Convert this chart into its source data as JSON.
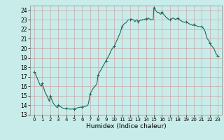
{
  "xlabel": "Humidex (Indice chaleur)",
  "background_color": "#c8ece9",
  "grid_color_major": "#c8a8a8",
  "grid_color_minor": "#ddbfbf",
  "line_color": "#1a6b5a",
  "marker_color": "#1a6b5a",
  "xlim": [
    -0.5,
    23.5
  ],
  "ylim": [
    13,
    24.5
  ],
  "yticks": [
    13,
    14,
    15,
    16,
    17,
    18,
    19,
    20,
    21,
    22,
    23,
    24
  ],
  "xticks": [
    0,
    1,
    2,
    3,
    4,
    5,
    6,
    7,
    8,
    9,
    10,
    11,
    12,
    13,
    14,
    15,
    16,
    17,
    18,
    19,
    20,
    21,
    22,
    23
  ],
  "x": [
    0,
    1,
    2,
    3,
    4,
    5,
    6,
    7,
    8,
    9,
    10,
    11,
    12,
    13,
    14,
    15,
    16,
    17,
    18,
    19,
    20,
    21,
    22,
    23
  ],
  "y": [
    17.5,
    16.3,
    15.0,
    14.0,
    13.7,
    13.6,
    13.8,
    15.2,
    17.2,
    18.7,
    20.2,
    22.3,
    23.0,
    22.8,
    23.1,
    24.3,
    23.8,
    23.0,
    23.2,
    22.8,
    22.5,
    22.3,
    20.5,
    19.2
  ],
  "dense_x": [
    0.0,
    0.1,
    0.2,
    0.3,
    0.4,
    0.5,
    0.6,
    0.7,
    0.8,
    0.9,
    1.0,
    1.1,
    1.2,
    1.3,
    1.4,
    1.5,
    1.6,
    1.7,
    1.8,
    1.9,
    2.0,
    2.1,
    2.2,
    2.3,
    2.4,
    2.5,
    2.6,
    2.7,
    2.8,
    2.9,
    3.0,
    3.1,
    3.2,
    3.3,
    3.4,
    3.5,
    3.6,
    3.7,
    3.8,
    3.9,
    4.0,
    4.1,
    4.2,
    4.3,
    4.4,
    4.5,
    4.6,
    4.7,
    4.8,
    4.9,
    5.0,
    5.1,
    5.2,
    5.3,
    5.4,
    5.5,
    5.6,
    5.7,
    5.8,
    5.9,
    6.0,
    6.1,
    6.2,
    6.3,
    6.4,
    6.5,
    6.6,
    6.7,
    6.8,
    6.9,
    7.0,
    7.1,
    7.2,
    7.3,
    7.4,
    7.5,
    7.6,
    7.7,
    7.8,
    7.9,
    8.0,
    8.1,
    8.2,
    8.3,
    8.4,
    8.5,
    8.6,
    8.7,
    8.8,
    8.9,
    9.0,
    9.1,
    9.2,
    9.3,
    9.4,
    9.5,
    9.6,
    9.7,
    9.8,
    9.9,
    10.0,
    10.1,
    10.2,
    10.3,
    10.4,
    10.5,
    10.6,
    10.7,
    10.8,
    10.9,
    11.0,
    11.1,
    11.2,
    11.3,
    11.4,
    11.5,
    11.6,
    11.7,
    11.8,
    11.9,
    12.0,
    12.1,
    12.2,
    12.3,
    12.4,
    12.5,
    12.6,
    12.7,
    12.8,
    12.9,
    13.0,
    13.1,
    13.2,
    13.3,
    13.4,
    13.5,
    13.6,
    13.7,
    13.8,
    13.9,
    14.0,
    14.1,
    14.2,
    14.3,
    14.4,
    14.5,
    14.6,
    14.7,
    14.8,
    14.9,
    15.0,
    15.1,
    15.2,
    15.3,
    15.4,
    15.5,
    15.6,
    15.7,
    15.8,
    15.9,
    16.0,
    16.1,
    16.2,
    16.3,
    16.4,
    16.5,
    16.6,
    16.7,
    16.8,
    16.9,
    17.0,
    17.1,
    17.2,
    17.3,
    17.4,
    17.5,
    17.6,
    17.7,
    17.8,
    17.9,
    18.0,
    18.1,
    18.2,
    18.3,
    18.4,
    18.5,
    18.6,
    18.7,
    18.8,
    18.9,
    19.0,
    19.1,
    19.2,
    19.3,
    19.4,
    19.5,
    19.6,
    19.7,
    19.8,
    19.9,
    20.0,
    20.1,
    20.2,
    20.3,
    20.4,
    20.5,
    20.6,
    20.7,
    20.8,
    20.9,
    21.0,
    21.1,
    21.2,
    21.3,
    21.4,
    21.5,
    21.6,
    21.7,
    21.8,
    21.9,
    22.0,
    22.1,
    22.2,
    22.3,
    22.4,
    22.5,
    22.6,
    22.7,
    22.8,
    22.9,
    23.0
  ],
  "dense_y": [
    17.5,
    17.38,
    17.2,
    17.0,
    16.8,
    16.6,
    16.4,
    16.2,
    16.1,
    16.0,
    16.3,
    16.0,
    15.8,
    15.5,
    15.3,
    15.15,
    15.0,
    14.8,
    14.6,
    14.4,
    15.0,
    14.8,
    14.6,
    14.4,
    14.2,
    14.1,
    14.0,
    13.9,
    13.8,
    13.75,
    14.0,
    13.95,
    13.9,
    13.85,
    13.8,
    13.75,
    13.7,
    13.68,
    13.66,
    13.64,
    13.7,
    13.66,
    13.64,
    13.62,
    13.6,
    13.6,
    13.6,
    13.6,
    13.62,
    13.64,
    13.6,
    13.63,
    13.67,
    13.7,
    13.73,
    13.75,
    13.77,
    13.79,
    13.8,
    13.82,
    13.8,
    13.82,
    13.84,
    13.87,
    13.9,
    13.92,
    13.95,
    14.0,
    14.2,
    14.7,
    15.2,
    15.35,
    15.5,
    15.65,
    15.8,
    15.9,
    16.0,
    16.1,
    16.2,
    16.5,
    17.2,
    17.35,
    17.5,
    17.65,
    17.8,
    17.95,
    18.1,
    18.25,
    18.4,
    18.55,
    18.7,
    18.85,
    19.0,
    19.15,
    19.3,
    19.5,
    19.7,
    19.85,
    20.0,
    20.1,
    20.2,
    20.35,
    20.55,
    20.75,
    20.9,
    21.1,
    21.3,
    21.5,
    21.7,
    22.0,
    22.3,
    22.4,
    22.5,
    22.6,
    22.65,
    22.7,
    22.8,
    22.95,
    23.0,
    23.0,
    23.0,
    23.05,
    23.1,
    23.05,
    23.0,
    22.95,
    22.8,
    22.9,
    23.0,
    23.0,
    22.8,
    22.85,
    22.9,
    22.95,
    23.0,
    22.95,
    23.05,
    23.0,
    23.0,
    23.1,
    23.1,
    23.05,
    23.15,
    23.2,
    23.1,
    23.1,
    23.05,
    23.0,
    23.0,
    23.0,
    24.3,
    24.2,
    24.0,
    23.9,
    23.8,
    23.75,
    23.8,
    23.7,
    23.6,
    23.6,
    23.8,
    23.7,
    23.6,
    23.5,
    23.4,
    23.3,
    23.2,
    23.15,
    23.1,
    23.0,
    23.0,
    23.05,
    23.1,
    23.15,
    23.2,
    23.15,
    23.1,
    23.05,
    23.1,
    23.1,
    23.2,
    23.1,
    23.0,
    22.95,
    22.9,
    22.85,
    22.8,
    22.78,
    22.75,
    22.72,
    22.8,
    22.75,
    22.7,
    22.65,
    22.6,
    22.55,
    22.5,
    22.48,
    22.45,
    22.4,
    22.5,
    22.45,
    22.4,
    22.38,
    22.35,
    22.3,
    22.3,
    22.3,
    22.28,
    22.26,
    22.3,
    22.2,
    22.1,
    22.0,
    21.8,
    21.5,
    21.2,
    21.0,
    20.9,
    20.8,
    20.5,
    20.4,
    20.3,
    20.2,
    20.1,
    20.0,
    19.8,
    19.6,
    19.4,
    19.3,
    19.2
  ]
}
